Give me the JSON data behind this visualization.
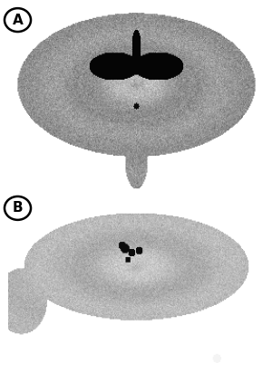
{
  "background_color": "#ffffff",
  "label_A": "A",
  "label_B": "B",
  "label_fontsize": 11,
  "fig_width": 3.0,
  "fig_height": 4.33,
  "dpi": 100
}
